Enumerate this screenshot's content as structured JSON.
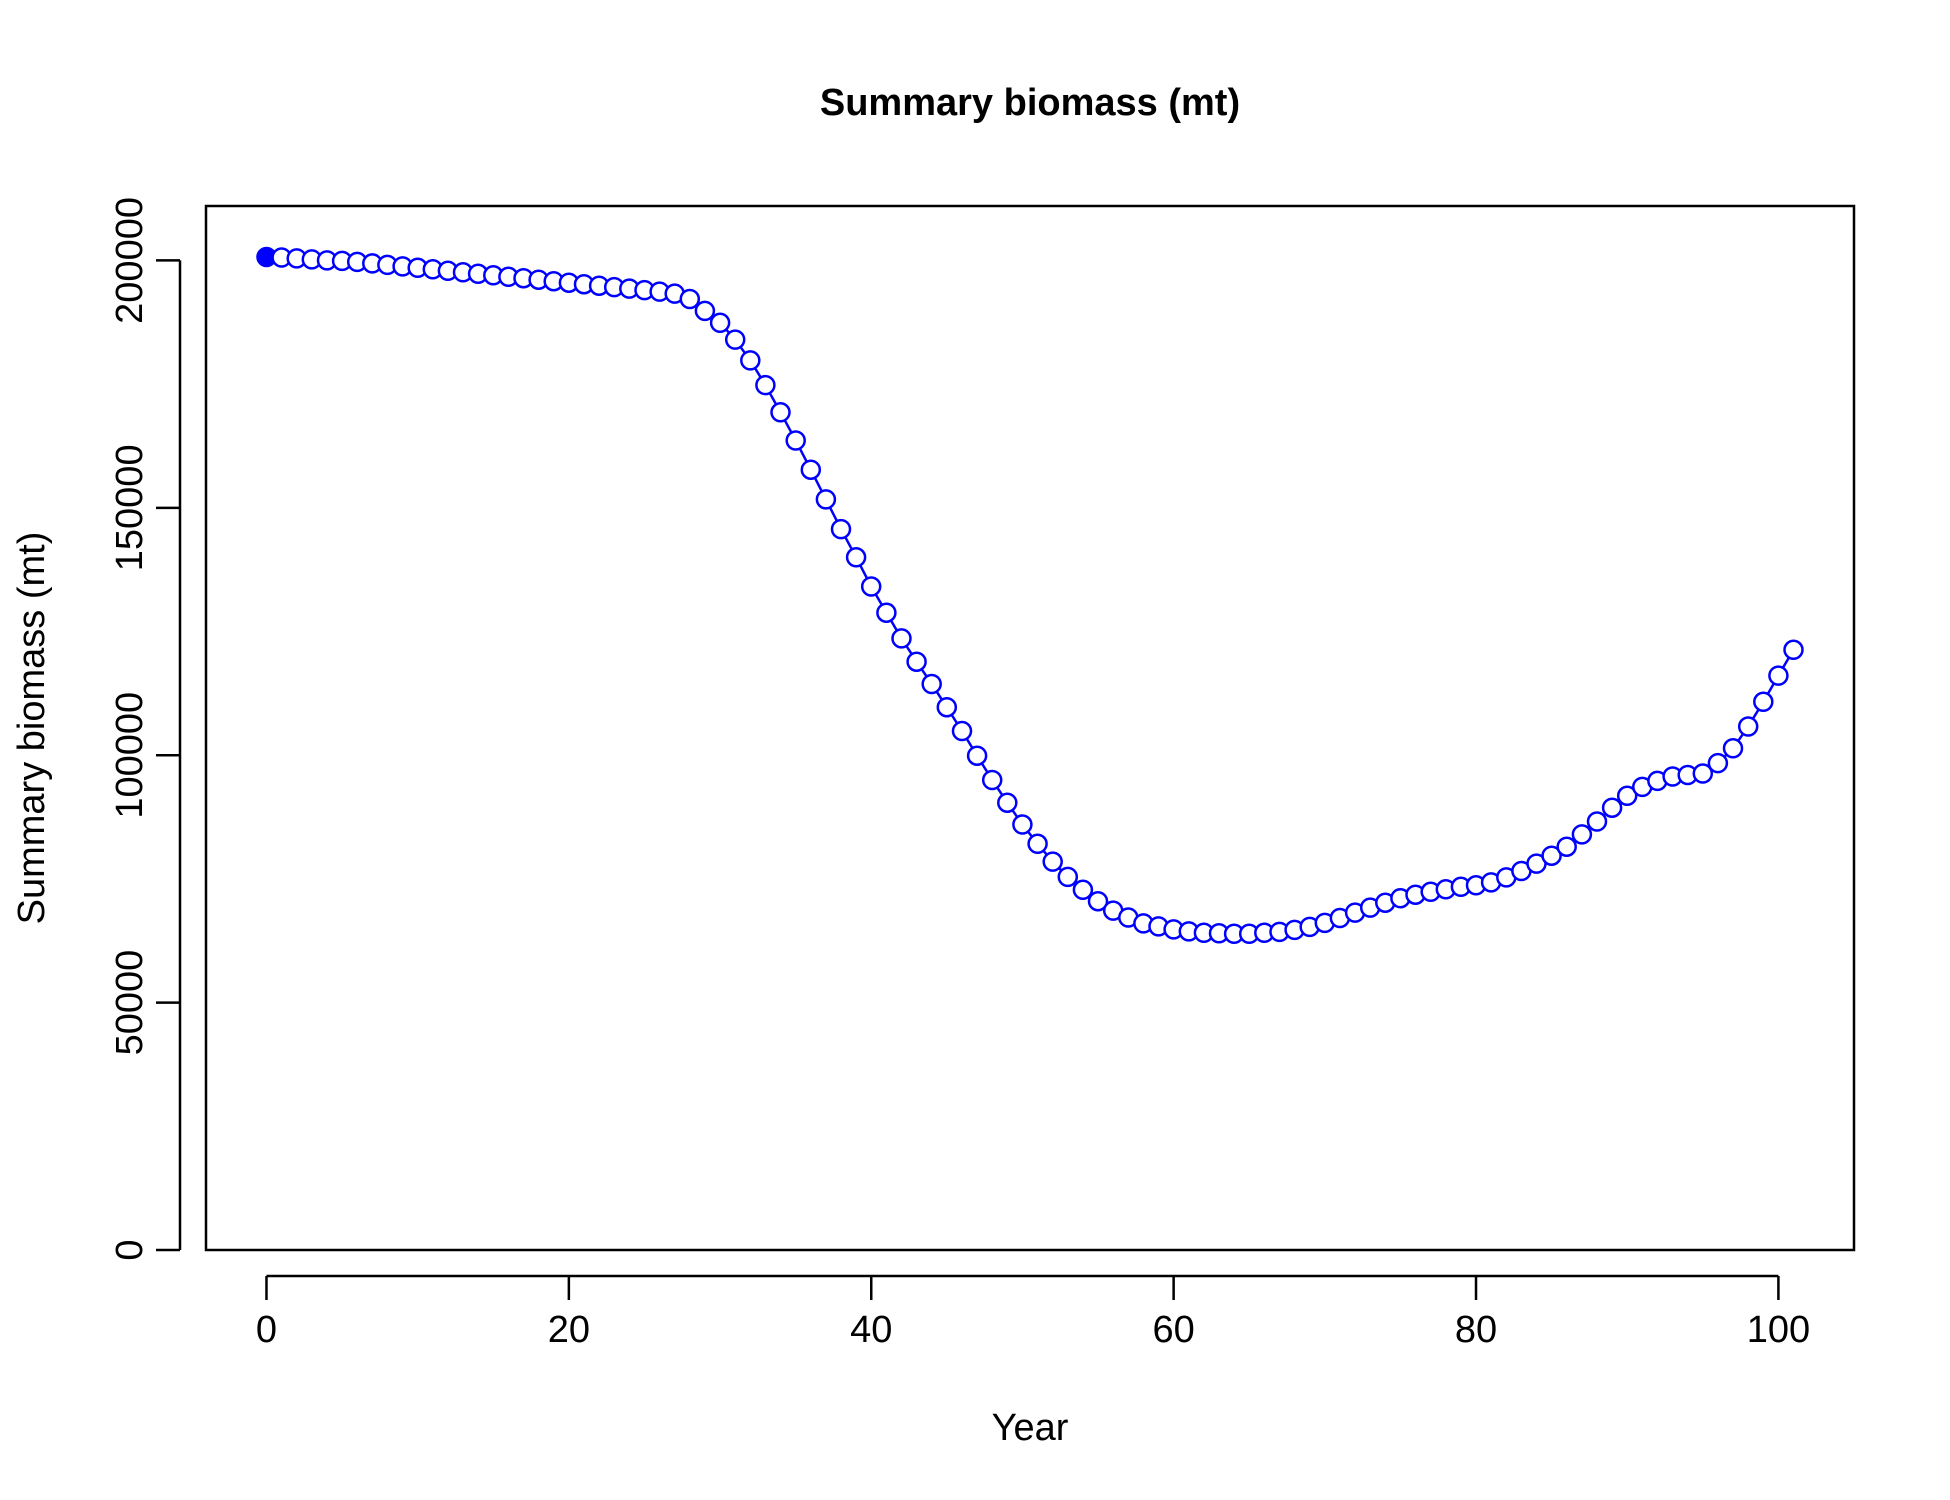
{
  "chart_data": {
    "type": "line",
    "title": "Summary biomass (mt)",
    "xlabel": "Year",
    "ylabel": "Summary biomass (mt)",
    "xlim": [
      -4,
      105
    ],
    "ylim": [
      0,
      211000
    ],
    "xticks": [
      0,
      20,
      40,
      60,
      80,
      100
    ],
    "yticks": [
      0,
      50000,
      100000,
      150000,
      200000
    ],
    "ytick_labels": [
      "0",
      "50000",
      "100000",
      "150000",
      "200000"
    ],
    "grid": false,
    "color": "#0000ff",
    "marker": "open-circle",
    "first_point_marker": "filled-circle",
    "series": [
      {
        "x": [
          0,
          1,
          2,
          3,
          4,
          5,
          6,
          7,
          8,
          9,
          10,
          11,
          12,
          13,
          14,
          15,
          16,
          17,
          18,
          19,
          20,
          21,
          22,
          23,
          24,
          25,
          26,
          27,
          28,
          29,
          30,
          31,
          32,
          33,
          34,
          35,
          36,
          37,
          38,
          39,
          40,
          41,
          42,
          43,
          44,
          45,
          46,
          47,
          48,
          49,
          50,
          51,
          52,
          53,
          54,
          55,
          56,
          57,
          58,
          59,
          60,
          61,
          62,
          63,
          64,
          65,
          66,
          67,
          68,
          69,
          70,
          71,
          72,
          73,
          74,
          75,
          76,
          77,
          78,
          79,
          80,
          81,
          82,
          83,
          84,
          85,
          86,
          87,
          88,
          89,
          90,
          91,
          92,
          93,
          94,
          95,
          96,
          97,
          98,
          99,
          100,
          101
        ],
        "y": [
          200700,
          200600,
          200400,
          200200,
          200000,
          199900,
          199700,
          199400,
          199100,
          198800,
          198500,
          198200,
          197900,
          197600,
          197300,
          197000,
          196700,
          196400,
          196100,
          195800,
          195500,
          195200,
          194900,
          194600,
          194300,
          194000,
          193700,
          193300,
          192200,
          189800,
          187400,
          184000,
          179800,
          174800,
          169300,
          163600,
          157700,
          151700,
          145700,
          140000,
          134100,
          128800,
          123600,
          118900,
          114400,
          109700,
          104900,
          99900,
          95000,
          90400,
          86000,
          82100,
          78500,
          75400,
          72800,
          70500,
          68600,
          67200,
          66000,
          65400,
          64800,
          64400,
          64100,
          64000,
          63900,
          63900,
          64100,
          64300,
          64700,
          65300,
          66100,
          67100,
          68200,
          69200,
          70200,
          71100,
          71800,
          72400,
          72900,
          73400,
          73700,
          74300,
          75300,
          76600,
          78100,
          79700,
          81500,
          84000,
          86600,
          89400,
          91800,
          93600,
          94800,
          95700,
          96000,
          96300,
          98400,
          101400,
          105800,
          110800,
          116100,
          121300
        ]
      }
    ]
  }
}
